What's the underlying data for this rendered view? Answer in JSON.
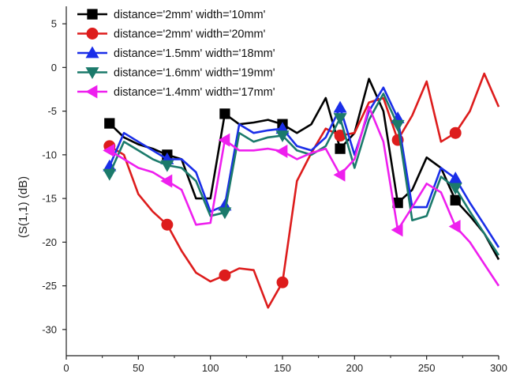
{
  "chart_data": {
    "type": "line",
    "title": "",
    "xlabel": "",
    "ylabel": "(S(1,1) (dB)",
    "xlim": [
      0,
      300
    ],
    "ylim": [
      -33,
      7
    ],
    "x_ticks": [
      0,
      50,
      100,
      150,
      200,
      250,
      300
    ],
    "y_ticks": [
      5,
      0,
      -5,
      -10,
      -15,
      -20,
      -25,
      -30
    ],
    "grid": false,
    "legend_position": "top-left",
    "series": [
      {
        "name": "distance='2mm' width='10mm'",
        "color": "#000000",
        "marker": "square",
        "x": [
          30,
          40,
          50,
          60,
          70,
          80,
          90,
          100,
          110,
          120,
          130,
          140,
          150,
          160,
          170,
          180,
          190,
          200,
          210,
          220,
          230,
          240,
          250,
          260,
          270,
          280,
          290,
          300
        ],
        "y": [
          -6.4,
          -8,
          -8.8,
          -9.3,
          -10,
          -10.5,
          -15,
          -15,
          -5.3,
          -6.5,
          -6.3,
          -6,
          -6.5,
          -7.5,
          -6.5,
          -3.5,
          -9.3,
          -7.5,
          -1.3,
          -5,
          -15.5,
          -14,
          -10.3,
          -11.5,
          -15.2,
          -17,
          -19,
          -22
        ],
        "marker_x": [
          30,
          70,
          110,
          150,
          190,
          230,
          270
        ]
      },
      {
        "name": "distance='2mm' width='20mm'",
        "color": "#dd1c1c",
        "marker": "circle",
        "x": [
          30,
          40,
          50,
          60,
          70,
          80,
          90,
          100,
          110,
          120,
          130,
          140,
          150,
          160,
          170,
          180,
          190,
          200,
          210,
          220,
          230,
          240,
          250,
          260,
          270,
          280,
          290,
          300
        ],
        "y": [
          -9,
          -10,
          -14.5,
          -16.5,
          -18,
          -21,
          -23.5,
          -24.5,
          -23.8,
          -23,
          -23.2,
          -27.5,
          -24.6,
          -13,
          -9.8,
          -7,
          -7.8,
          -7.5,
          -4,
          -3.5,
          -8.3,
          -5.5,
          -1.6,
          -8.5,
          -7.5,
          -5,
          -0.7,
          -4.5
        ],
        "marker_x": [
          30,
          70,
          110,
          150,
          190,
          230,
          270
        ]
      },
      {
        "name": "distance='1.5mm' width='18mm'",
        "color": "#1a2ee8",
        "marker": "triangle-up",
        "x": [
          30,
          40,
          50,
          60,
          70,
          80,
          90,
          100,
          110,
          120,
          130,
          140,
          150,
          160,
          170,
          180,
          190,
          200,
          210,
          220,
          230,
          240,
          250,
          260,
          270,
          280,
          290,
          300
        ],
        "y": [
          -11.3,
          -7.5,
          -8.5,
          -9.5,
          -10.5,
          -10.5,
          -12,
          -16.5,
          -15.8,
          -6.5,
          -7.5,
          -7.2,
          -7,
          -9,
          -9.5,
          -8,
          -4.6,
          -10,
          -5,
          -2.3,
          -5.8,
          -16,
          -16,
          -11.5,
          -12.7,
          -15.5,
          -18,
          -20.6
        ],
        "marker_x": [
          30,
          70,
          110,
          150,
          190,
          230,
          270
        ]
      },
      {
        "name": "distance='1.6mm' width='19mm'",
        "color": "#1b7a6b",
        "marker": "triangle-down",
        "x": [
          30,
          40,
          50,
          60,
          70,
          80,
          90,
          100,
          110,
          120,
          130,
          140,
          150,
          160,
          170,
          180,
          190,
          200,
          210,
          220,
          230,
          240,
          250,
          260,
          270,
          280,
          290,
          300
        ],
        "y": [
          -12.2,
          -8.5,
          -9.5,
          -10.5,
          -11.2,
          -11.5,
          -13,
          -17,
          -16.6,
          -7.5,
          -8.5,
          -8,
          -7.8,
          -9.5,
          -10,
          -9,
          -5.8,
          -11.5,
          -6,
          -3,
          -6.6,
          -17.5,
          -17,
          -12.5,
          -13.8,
          -16.5,
          -19,
          -21.5
        ],
        "marker_x": [
          30,
          70,
          110,
          150,
          190,
          230,
          270
        ]
      },
      {
        "name": "distance='1.4mm' width='17mm'",
        "color": "#ee1fee",
        "marker": "triangle-left",
        "x": [
          30,
          40,
          50,
          60,
          70,
          80,
          90,
          100,
          110,
          120,
          130,
          140,
          150,
          160,
          170,
          180,
          190,
          200,
          210,
          220,
          230,
          240,
          250,
          260,
          270,
          280,
          290,
          300
        ],
        "y": [
          -9.5,
          -10.5,
          -11.5,
          -12,
          -13,
          -14,
          -18,
          -17.8,
          -8.3,
          -9.5,
          -9.5,
          -9.3,
          -9.6,
          -10.5,
          -9.8,
          -9.3,
          -12.3,
          -10.5,
          -4.5,
          -8.5,
          -18.6,
          -16,
          -13.3,
          -14.3,
          -18.2,
          -20,
          -22.5,
          -25
        ],
        "marker_x": [
          30,
          70,
          110,
          150,
          190,
          230,
          270
        ]
      }
    ]
  }
}
